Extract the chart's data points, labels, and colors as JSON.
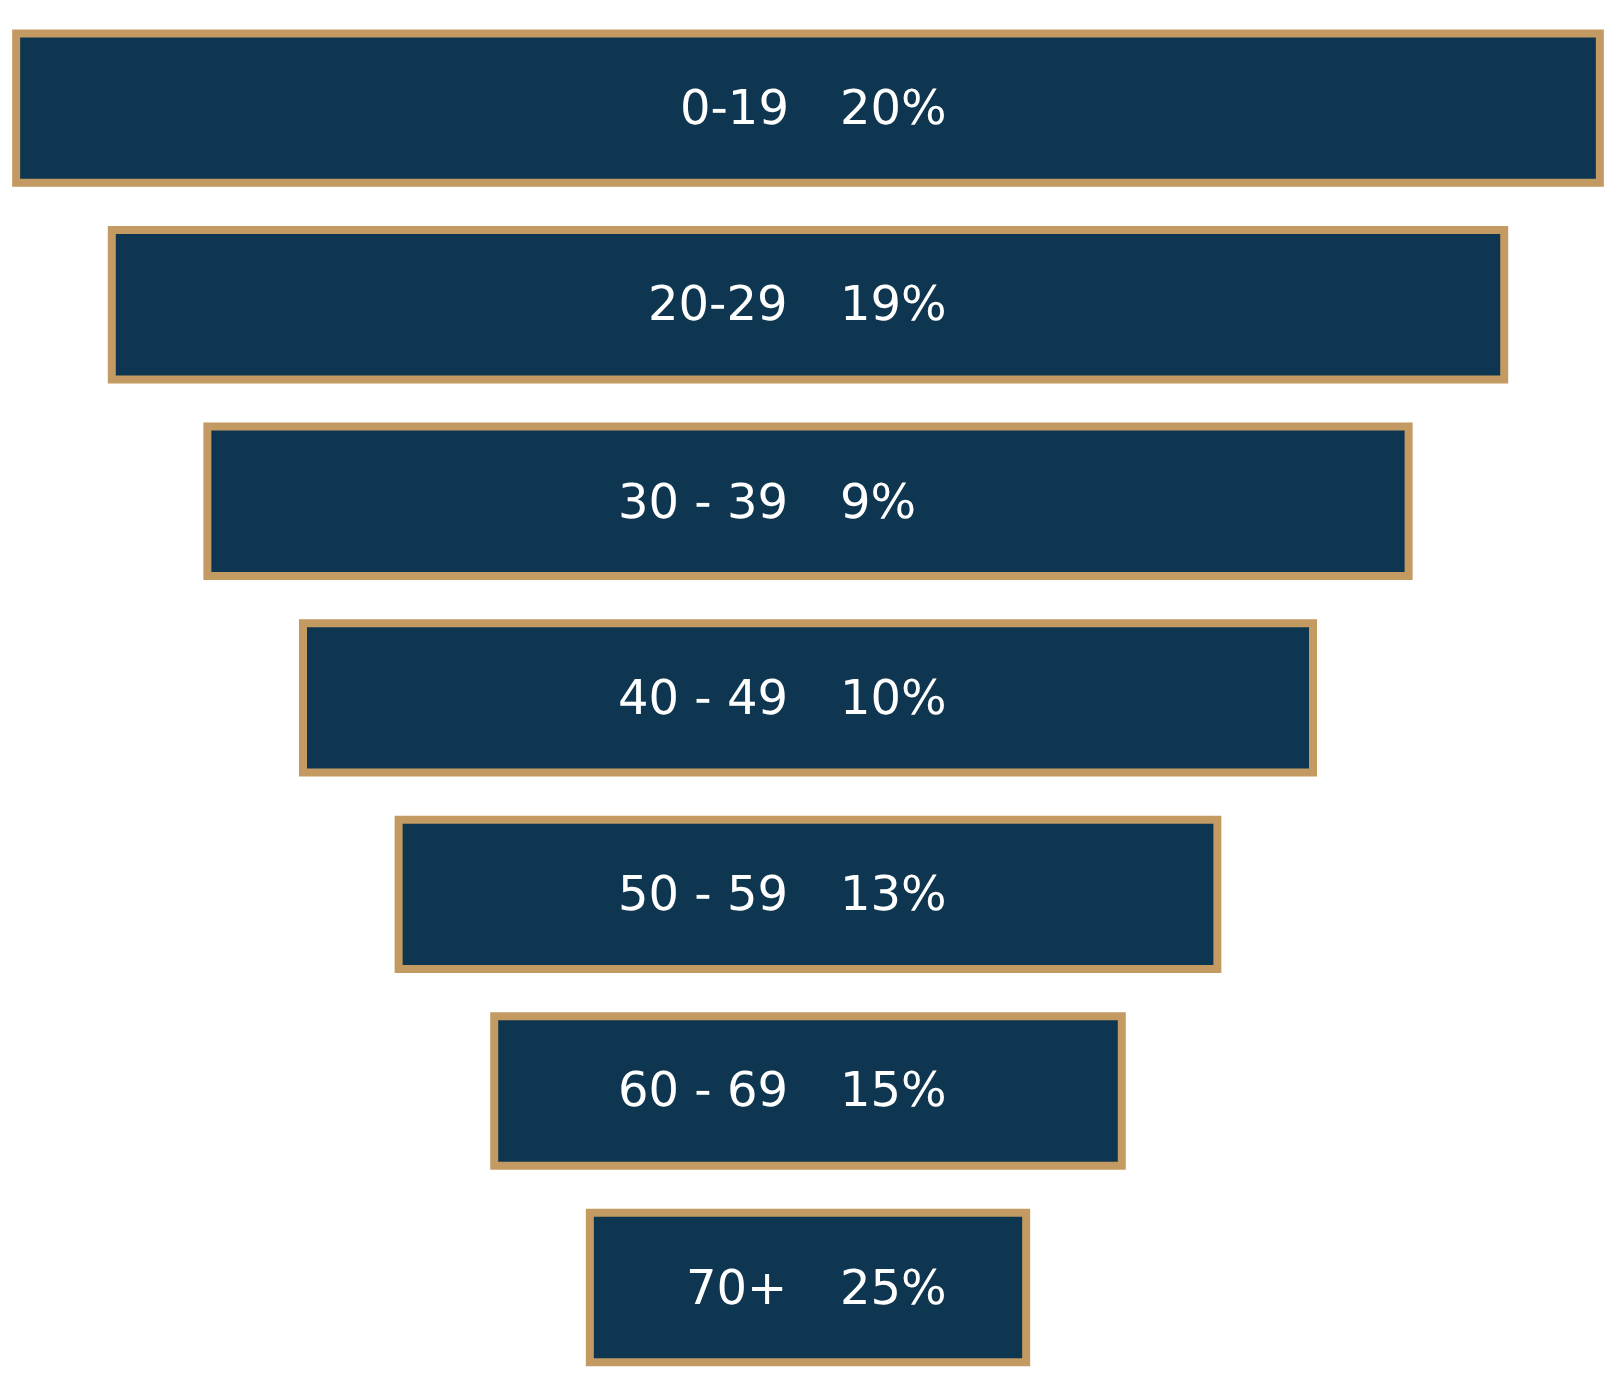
{
  "chart_data": {
    "type": "other",
    "categories": [
      "0-19",
      "20-29",
      "30 - 39",
      "40 - 49",
      "50 - 59",
      "60 - 69",
      "70+"
    ],
    "values": [
      20,
      19,
      9,
      10,
      13,
      15,
      25
    ],
    "value_labels": [
      "20%",
      "19%",
      "9%",
      "10%",
      "13%",
      "15%",
      "25%"
    ],
    "color": "#0e3650"
  }
}
